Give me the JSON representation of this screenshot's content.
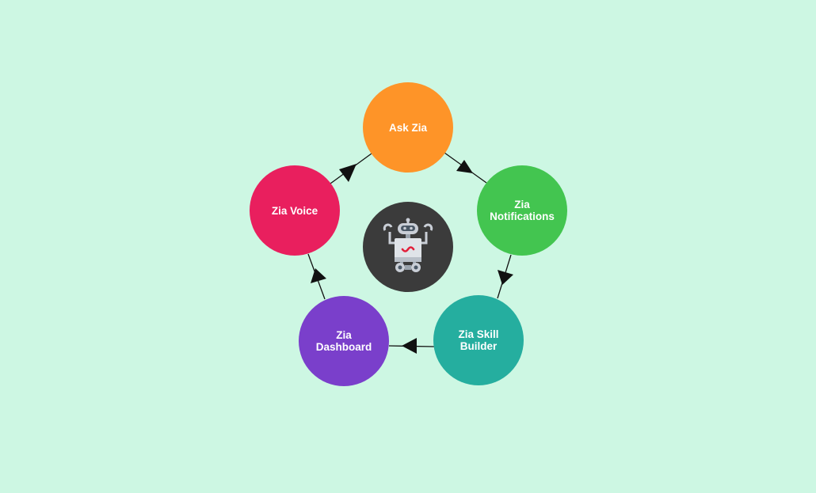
{
  "diagram": {
    "center_icon": "robot-icon",
    "nodes": [
      {
        "id": "ask-zia",
        "label": "Ask Zia",
        "color": "#fe9428"
      },
      {
        "id": "zia-notifications",
        "label": "Zia\nNotifications",
        "color": "#43c550"
      },
      {
        "id": "zia-skill-builder",
        "label": "Zia Skill\nBuilder",
        "color": "#25ae9f"
      },
      {
        "id": "zia-dashboard",
        "label": "Zia\nDashboard",
        "color": "#7a3fcb"
      },
      {
        "id": "zia-voice",
        "label": "Zia Voice",
        "color": "#e91f5e"
      }
    ],
    "flow": [
      {
        "from": "ask-zia",
        "to": "zia-notifications"
      },
      {
        "from": "zia-notifications",
        "to": "zia-skill-builder"
      },
      {
        "from": "zia-skill-builder",
        "to": "zia-dashboard"
      },
      {
        "from": "zia-dashboard",
        "to": "zia-voice"
      },
      {
        "from": "zia-voice",
        "to": "ask-zia"
      }
    ],
    "colors": {
      "background": "#cdf7e3",
      "hub": "#3b3b3b",
      "connector": "#111111"
    }
  }
}
